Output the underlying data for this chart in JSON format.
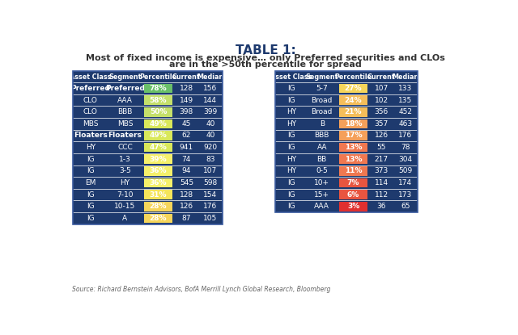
{
  "title": "TABLE 1:",
  "subtitle_line1": "Most of fixed income is expensive… only Preferred securities and CLOs",
  "subtitle_line2": "are in the >50th percentile for spread",
  "source": "Source: Richard Bernstein Advisors, BofA Merrill Lynch Global Research, Bloomberg",
  "left_table": {
    "headers": [
      "Asset Class",
      "Segment",
      "Percentile",
      "Current",
      "Median"
    ],
    "rows": [
      {
        "asset": "Preferred",
        "segment": "Preferred",
        "percentile": 78,
        "pct_str": "78%",
        "current": "128",
        "median": "156",
        "bold": true
      },
      {
        "asset": "CLO",
        "segment": "AAA",
        "percentile": 58,
        "pct_str": "58%",
        "current": "149",
        "median": "144",
        "bold": false
      },
      {
        "asset": "CLO",
        "segment": "BBB",
        "percentile": 50,
        "pct_str": "50%",
        "current": "398",
        "median": "399",
        "bold": false
      },
      {
        "asset": "MBS",
        "segment": "MBS",
        "percentile": 49,
        "pct_str": "49%",
        "current": "45",
        "median": "40",
        "bold": false
      },
      {
        "asset": "Floaters",
        "segment": "Floaters",
        "percentile": 49,
        "pct_str": "49%",
        "current": "62",
        "median": "40",
        "bold": true
      },
      {
        "asset": "HY",
        "segment": "CCC",
        "percentile": 47,
        "pct_str": "47%",
        "current": "941",
        "median": "920",
        "bold": false
      },
      {
        "asset": "IG",
        "segment": "1-3",
        "percentile": 39,
        "pct_str": "39%",
        "current": "74",
        "median": "83",
        "bold": false
      },
      {
        "asset": "IG",
        "segment": "3-5",
        "percentile": 36,
        "pct_str": "36%",
        "current": "94",
        "median": "107",
        "bold": false
      },
      {
        "asset": "EM",
        "segment": "HY",
        "percentile": 36,
        "pct_str": "36%",
        "current": "545",
        "median": "598",
        "bold": false
      },
      {
        "asset": "IG",
        "segment": "7-10",
        "percentile": 31,
        "pct_str": "31%",
        "current": "128",
        "median": "154",
        "bold": false
      },
      {
        "asset": "IG",
        "segment": "10-15",
        "percentile": 28,
        "pct_str": "28%",
        "current": "126",
        "median": "176",
        "bold": false
      },
      {
        "asset": "IG",
        "segment": "A",
        "percentile": 28,
        "pct_str": "28%",
        "current": "87",
        "median": "105",
        "bold": false
      }
    ]
  },
  "right_table": {
    "headers": [
      "Asset Class",
      "Segment",
      "Percentile",
      "Current",
      "Median"
    ],
    "rows": [
      {
        "asset": "IG",
        "segment": "5-7",
        "percentile": 27,
        "pct_str": "27%",
        "current": "107",
        "median": "133",
        "bold": false
      },
      {
        "asset": "IG",
        "segment": "Broad",
        "percentile": 24,
        "pct_str": "24%",
        "current": "102",
        "median": "135",
        "bold": false
      },
      {
        "asset": "HY",
        "segment": "Broad",
        "percentile": 21,
        "pct_str": "21%",
        "current": "356",
        "median": "452",
        "bold": false
      },
      {
        "asset": "HY",
        "segment": "B",
        "percentile": 18,
        "pct_str": "18%",
        "current": "357",
        "median": "463",
        "bold": false
      },
      {
        "asset": "IG",
        "segment": "BBB",
        "percentile": 17,
        "pct_str": "17%",
        "current": "126",
        "median": "176",
        "bold": false
      },
      {
        "asset": "IG",
        "segment": "AA",
        "percentile": 13,
        "pct_str": "13%",
        "current": "55",
        "median": "78",
        "bold": false
      },
      {
        "asset": "HY",
        "segment": "BB",
        "percentile": 13,
        "pct_str": "13%",
        "current": "217",
        "median": "304",
        "bold": false
      },
      {
        "asset": "HY",
        "segment": "0-5",
        "percentile": 11,
        "pct_str": "11%",
        "current": "373",
        "median": "509",
        "bold": false
      },
      {
        "asset": "IG",
        "segment": "10+",
        "percentile": 7,
        "pct_str": "7%",
        "current": "114",
        "median": "174",
        "bold": false
      },
      {
        "asset": "IG",
        "segment": "15+",
        "percentile": 6,
        "pct_str": "6%",
        "current": "112",
        "median": "173",
        "bold": false
      },
      {
        "asset": "IG",
        "segment": "AAA",
        "percentile": 3,
        "pct_str": "3%",
        "current": "36",
        "median": "65",
        "bold": false
      }
    ]
  },
  "header_bg": "#1e3a6e",
  "header_fg": "#ffffff",
  "row_bg": "#1e3a6e",
  "row_fg": "#ffffff",
  "title_color": "#1e3a6e",
  "subtitle_color": "#333333",
  "source_color": "#666666"
}
